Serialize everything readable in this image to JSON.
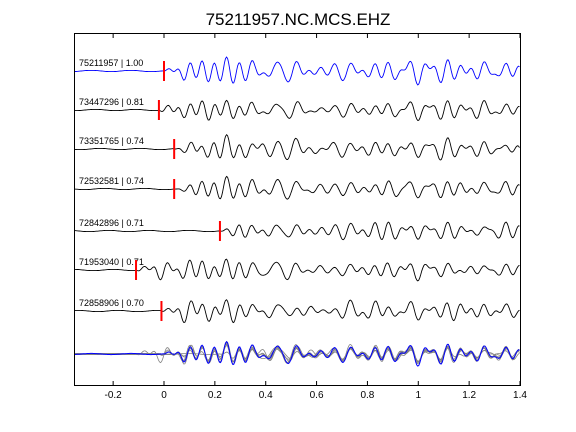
{
  "chart_data": {
    "type": "line",
    "title": "75211957.NC.MCS.EHZ",
    "xlim": [
      -0.35,
      1.4
    ],
    "x_ticks": [
      -0.2,
      0,
      0.2,
      0.4,
      0.6,
      0.8,
      1,
      1.2,
      1.4
    ],
    "x_tick_labels": [
      "-0.2",
      "0",
      "0.2",
      "0.4",
      "0.6",
      "0.8",
      "1",
      "1.2",
      "1.4"
    ],
    "grid": false,
    "colors": {
      "reference_trace": "#0000ff",
      "trace": "#000000",
      "pick_marker": "#ff0000",
      "stack_trace": "#808080"
    },
    "traces": [
      {
        "label": "75211957 | 1.00",
        "id": "75211957",
        "correlation": 1.0,
        "pick_time": 0.0,
        "reference": true
      },
      {
        "label": "73447296 | 0.81",
        "id": "73447296",
        "correlation": 0.81,
        "pick_time": -0.02,
        "reference": false
      },
      {
        "label": "73351765 | 0.74",
        "id": "73351765",
        "correlation": 0.74,
        "pick_time": 0.04,
        "reference": false
      },
      {
        "label": "72532581 | 0.74",
        "id": "72532581",
        "correlation": 0.74,
        "pick_time": 0.04,
        "reference": false
      },
      {
        "label": "72842896 | 0.71",
        "id": "72842896",
        "correlation": 0.71,
        "pick_time": 0.22,
        "reference": false
      },
      {
        "label": "71953040 | 0.71",
        "id": "71953040",
        "correlation": 0.71,
        "pick_time": -0.11,
        "reference": false
      },
      {
        "label": "72858906 | 0.70",
        "id": "72858906",
        "correlation": 0.7,
        "pick_time": -0.01,
        "reference": false
      }
    ],
    "stack": {
      "overlay_of_all_traces": true,
      "reference_highlighted": true
    }
  }
}
